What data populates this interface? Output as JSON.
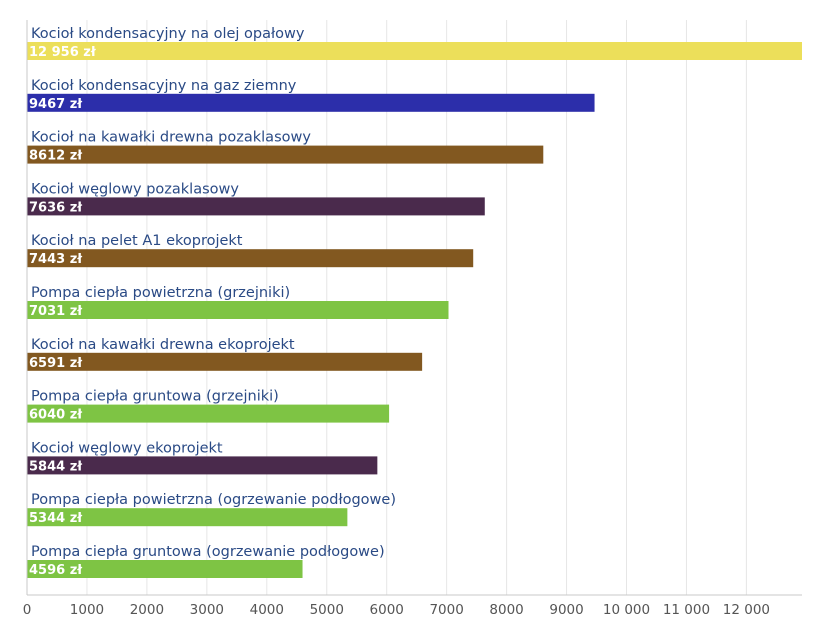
{
  "chart_data": {
    "type": "bar",
    "orientation": "horizontal",
    "title": "",
    "xlabel": "",
    "ylabel": "",
    "xlim": [
      0,
      13000
    ],
    "grid": true,
    "categories": [
      "Kocioł kondensacyjny na olej opałowy",
      "Kocioł kondensacyjny na gaz ziemny",
      "Kocioł na kawałki drewna pozaklasowy",
      "Kocioł węglowy pozaklasowy",
      "Kocioł na pelet A1 ekoprojekt",
      "Pompa ciepła powietrzna (grzejniki)",
      "Kocioł na kawałki drewna ekoprojekt",
      "Pompa ciepła gruntowa (grzejniki)",
      "Kocioł węglowy ekoprojekt",
      "Pompa ciepła powietrzna (ogrzewanie podłogowe)",
      "Pompa ciepła gruntowa (ogrzewanie podłogowe)"
    ],
    "values": [
      12956,
      9467,
      8612,
      7636,
      7443,
      7031,
      6591,
      6040,
      5844,
      5344,
      4596
    ],
    "value_labels": [
      "12 956 zł",
      "9467 zł",
      "8612 zł",
      "7636 zł",
      "7443 zł",
      "7031 zł",
      "6591 zł",
      "6040 zł",
      "5844 zł",
      "5344 zł",
      "4596 zł"
    ],
    "colors": [
      "#ecdf5a",
      "#2c2eaa",
      "#825820",
      "#4a2a4c",
      "#825820",
      "#7ec444",
      "#825820",
      "#7ec444",
      "#4a2a4c",
      "#7ec444",
      "#7ec444"
    ],
    "x_ticks": [
      0,
      1000,
      2000,
      3000,
      4000,
      5000,
      6000,
      7000,
      8000,
      9000,
      10000,
      11000,
      12000
    ],
    "x_tick_labels": [
      "0",
      "1000",
      "2000",
      "3000",
      "4000",
      "5000",
      "6000",
      "7000",
      "8000",
      "9000",
      "10 000",
      "11 000",
      "12 000"
    ]
  }
}
